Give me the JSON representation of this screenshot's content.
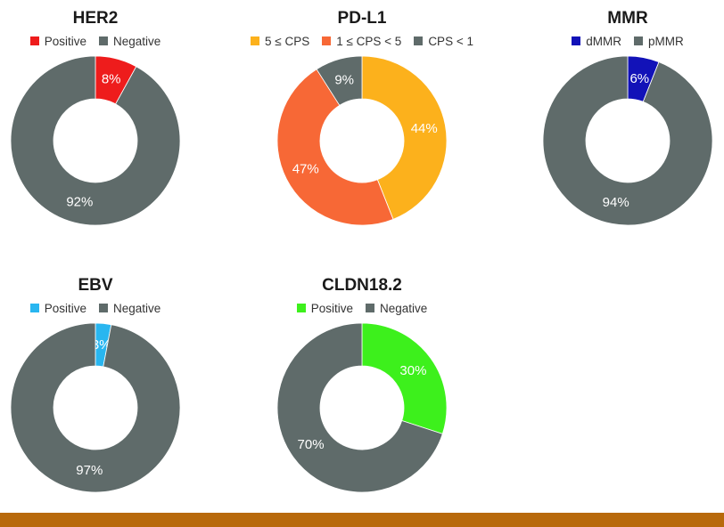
{
  "chart_data": [
    {
      "type": "pie",
      "title": "HER2",
      "categories": [
        "Positive",
        "Negative"
      ],
      "values": [
        8,
        92
      ],
      "labels": [
        "8%",
        "92%"
      ],
      "colors": [
        "#ee1c1c",
        "#5f6b6a"
      ],
      "label_colors": [
        "#ffffff",
        "#ffffff"
      ],
      "legend": "top"
    },
    {
      "type": "pie",
      "title": "PD-L1",
      "categories": [
        "5 ≤ CPS",
        "1 ≤ CPS < 5",
        "CPS < 1"
      ],
      "values": [
        44,
        47,
        9
      ],
      "labels": [
        "44%",
        "47%",
        "9%"
      ],
      "colors": [
        "#fcb11c",
        "#f76836",
        "#5f6b6a"
      ],
      "label_colors": [
        "#ffffff",
        "#ffffff",
        "#ffffff"
      ],
      "legend": "top"
    },
    {
      "type": "pie",
      "title": "MMR",
      "categories": [
        "dMMR",
        "pMMR"
      ],
      "values": [
        6,
        94
      ],
      "labels": [
        "6%",
        "94%"
      ],
      "colors": [
        "#1212b8",
        "#5f6b6a"
      ],
      "label_colors": [
        "#ffffff",
        "#ffffff"
      ],
      "legend": "top"
    },
    {
      "type": "pie",
      "title": "EBV",
      "categories": [
        "Positive",
        "Negative"
      ],
      "values": [
        3,
        97
      ],
      "labels": [
        "3%",
        "97%"
      ],
      "colors": [
        "#29b6f0",
        "#5f6b6a"
      ],
      "label_colors": [
        "#ffffff",
        "#ffffff"
      ],
      "legend": "top"
    },
    {
      "type": "pie",
      "title": "CLDN18.2",
      "categories": [
        "Positive",
        "Negative"
      ],
      "values": [
        30,
        70
      ],
      "labels": [
        "30%",
        "70%"
      ],
      "colors": [
        "#3df01c",
        "#5f6b6a"
      ],
      "label_colors": [
        "#ffffff",
        "#ffffff"
      ],
      "legend": "top"
    }
  ]
}
